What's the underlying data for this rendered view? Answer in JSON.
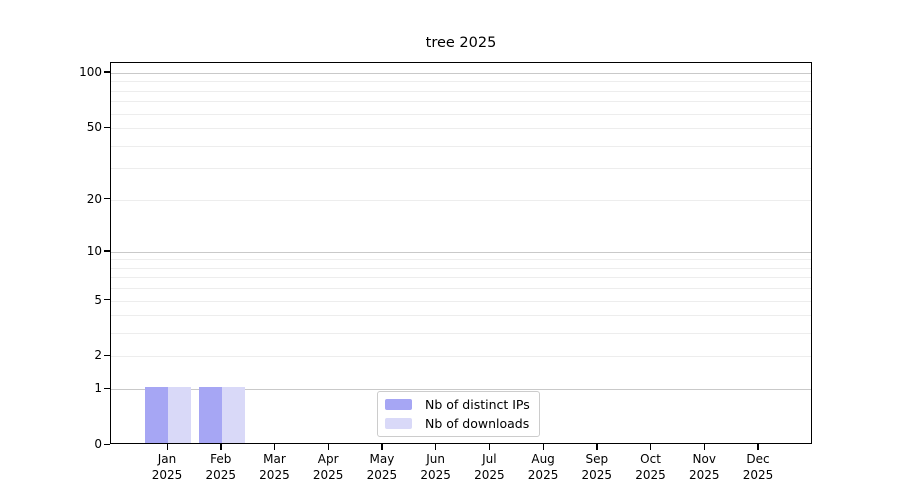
{
  "chart_data": {
    "type": "bar",
    "title": "tree 2025",
    "categories": [
      "Jan 2025",
      "Feb 2025",
      "Mar 2025",
      "Apr 2025",
      "May 2025",
      "Jun 2025",
      "Jul 2025",
      "Aug 2025",
      "Sep 2025",
      "Oct 2025",
      "Nov 2025",
      "Dec 2025"
    ],
    "series": [
      {
        "name": "Nb of distinct IPs",
        "color": "#a6a6f4",
        "values": [
          1,
          1,
          0,
          0,
          0,
          0,
          0,
          0,
          0,
          0,
          0,
          0
        ]
      },
      {
        "name": "Nb of downloads",
        "color": "#d9d9f8",
        "values": [
          1,
          1,
          0,
          0,
          0,
          0,
          0,
          0,
          0,
          0,
          0,
          0
        ]
      }
    ],
    "xlabel": "",
    "ylabel": "",
    "yscale": "log1p",
    "ylim": [
      0,
      113
    ],
    "yticks": [
      0,
      1,
      2,
      5,
      10,
      20,
      50,
      100
    ],
    "major_grid_values": [
      1,
      10,
      100
    ],
    "minor_grid_values": [
      2,
      3,
      4,
      5,
      6,
      7,
      8,
      9,
      20,
      30,
      40,
      50,
      60,
      70,
      80,
      90
    ],
    "grid": "horizontal",
    "legend_position": "inside-bottom-center"
  },
  "colors": {
    "major_grid": "#c9c9c9",
    "minor_grid": "#ededed",
    "axis": "#000000",
    "legend_border": "#cccccc",
    "background": "#ffffff"
  }
}
